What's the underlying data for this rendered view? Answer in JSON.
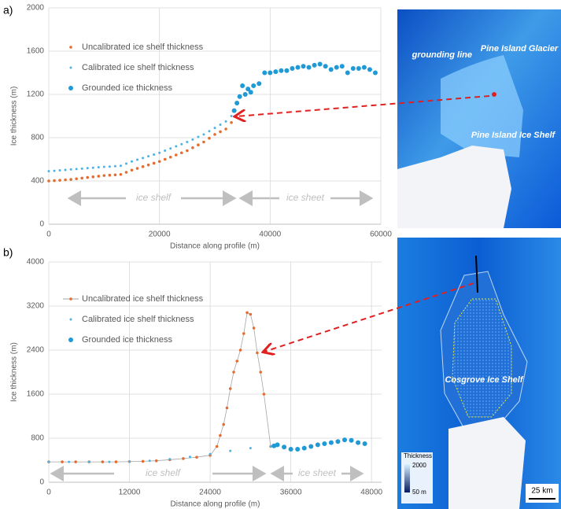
{
  "panels": [
    "a)",
    "b)"
  ],
  "chart_data": [
    {
      "type": "scatter",
      "xlabel": "Distance along profile (m)",
      "ylabel": "Ice thickness (m)",
      "xlim": [
        0,
        60000
      ],
      "ylim": [
        0,
        2000
      ],
      "xticks": [
        0,
        20000,
        40000,
        60000
      ],
      "yticks": [
        0,
        400,
        800,
        1200,
        1600,
        2000
      ],
      "grid": true,
      "annotations": [
        "ice shelf",
        "ice sheet"
      ],
      "series": [
        {
          "name": "Uncalibrated ice shelf thickness",
          "color": "#e46c2e",
          "marker_size": 1.8,
          "x": [
            0,
            1000,
            2000,
            3000,
            4000,
            5000,
            6000,
            7000,
            8000,
            9000,
            10000,
            11000,
            12000,
            13000,
            14000,
            15000,
            16000,
            17000,
            18000,
            19000,
            20000,
            21000,
            22000,
            23000,
            24000,
            25000,
            26000,
            27000,
            28000,
            29000,
            30000,
            31000,
            32000,
            33000
          ],
          "values": [
            400,
            403,
            406,
            410,
            414,
            420,
            426,
            432,
            438,
            444,
            450,
            453,
            456,
            460,
            480,
            500,
            516,
            532,
            548,
            564,
            580,
            600,
            620,
            640,
            660,
            680,
            707,
            733,
            760,
            795,
            830,
            855,
            880,
            940
          ]
        },
        {
          "name": "Calibrated ice shelf thickness",
          "color": "#4bb3e6",
          "marker_size": 1.5,
          "x": [
            0,
            1000,
            2000,
            3000,
            4000,
            5000,
            6000,
            7000,
            8000,
            9000,
            10000,
            11000,
            12000,
            13000,
            14000,
            15000,
            16000,
            17000,
            18000,
            19000,
            20000,
            21000,
            22000,
            23000,
            24000,
            25000,
            26000,
            27000,
            28000,
            29000,
            30000,
            31000,
            32000,
            33000
          ],
          "values": [
            490,
            494,
            498,
            502,
            506,
            510,
            514,
            518,
            522,
            526,
            530,
            533,
            536,
            540,
            560,
            580,
            596,
            612,
            628,
            644,
            660,
            680,
            700,
            720,
            740,
            760,
            783,
            807,
            830,
            860,
            890,
            920,
            950,
            1000
          ]
        },
        {
          "name": "Grounded ice thickness",
          "color": "#1f9ad6",
          "marker_size": 3,
          "x": [
            33500,
            34000,
            34500,
            35000,
            35500,
            36000,
            36500,
            37000,
            38000,
            39000,
            40000,
            41000,
            42000,
            43000,
            44000,
            45000,
            46000,
            47000,
            48000,
            49000,
            50000,
            51000,
            52000,
            53000,
            54000,
            55000,
            56000,
            57000,
            58000,
            59000
          ],
          "values": [
            1050,
            1120,
            1180,
            1280,
            1200,
            1250,
            1220,
            1280,
            1300,
            1400,
            1400,
            1410,
            1420,
            1420,
            1440,
            1450,
            1460,
            1450,
            1470,
            1480,
            1460,
            1430,
            1450,
            1460,
            1400,
            1440,
            1440,
            1450,
            1430,
            1400
          ]
        }
      ]
    },
    {
      "type": "scatter",
      "xlabel": "Distance along profile (m)",
      "ylabel": "Ice thickness (m)",
      "xlim": [
        0,
        49500
      ],
      "ylim": [
        0,
        4000
      ],
      "xticks": [
        0,
        12000,
        24000,
        36000,
        48000
      ],
      "yticks": [
        0,
        800,
        1600,
        2400,
        3200,
        4000
      ],
      "grid": true,
      "annotations": [
        "ice shelf",
        "ice sheet"
      ],
      "series": [
        {
          "name": "Uncalibrated ice shelf thickness",
          "color": "#e46c2e",
          "marker_size": 1.8,
          "line": true,
          "x": [
            0,
            2000,
            4000,
            6000,
            8000,
            10000,
            12000,
            14000,
            16000,
            18000,
            20000,
            22000,
            24000,
            25000,
            25500,
            26000,
            26500,
            27000,
            27500,
            28000,
            28500,
            29000,
            29500,
            30000,
            30500,
            31000,
            31500,
            32000,
            33000
          ],
          "values": [
            370,
            370,
            370,
            370,
            370,
            370,
            375,
            380,
            390,
            410,
            430,
            455,
            490,
            650,
            850,
            1050,
            1350,
            1700,
            2000,
            2200,
            2400,
            2700,
            3080,
            3050,
            2800,
            2350,
            2000,
            1600,
            650
          ]
        },
        {
          "name": "Calibrated ice shelf thickness",
          "color": "#4bb3e6",
          "marker_size": 1.5,
          "x": [
            0,
            3000,
            6000,
            9000,
            12000,
            15000,
            18000,
            21000,
            24000,
            27000,
            30000,
            33000
          ],
          "values": [
            370,
            370,
            370,
            370,
            375,
            390,
            420,
            460,
            510,
            570,
            620,
            650
          ]
        },
        {
          "name": "Grounded ice thickness",
          "color": "#1f9ad6",
          "marker_size": 3,
          "x": [
            33500,
            34000,
            35000,
            36000,
            37000,
            38000,
            39000,
            40000,
            41000,
            42000,
            43000,
            44000,
            45000,
            46000,
            47000
          ],
          "values": [
            660,
            680,
            640,
            600,
            600,
            620,
            650,
            680,
            700,
            720,
            740,
            770,
            760,
            720,
            700
          ]
        }
      ]
    }
  ],
  "maps": [
    {
      "labels": [
        "grounding line",
        "Pine Island Glacier",
        "Pine Island Ice Shelf"
      ]
    },
    {
      "labels": [
        "Cosgrove Ice Shelf"
      ],
      "legend_title": "Thickness",
      "legend_max": "2000",
      "legend_min": "50 m",
      "scale": "25 km"
    }
  ]
}
